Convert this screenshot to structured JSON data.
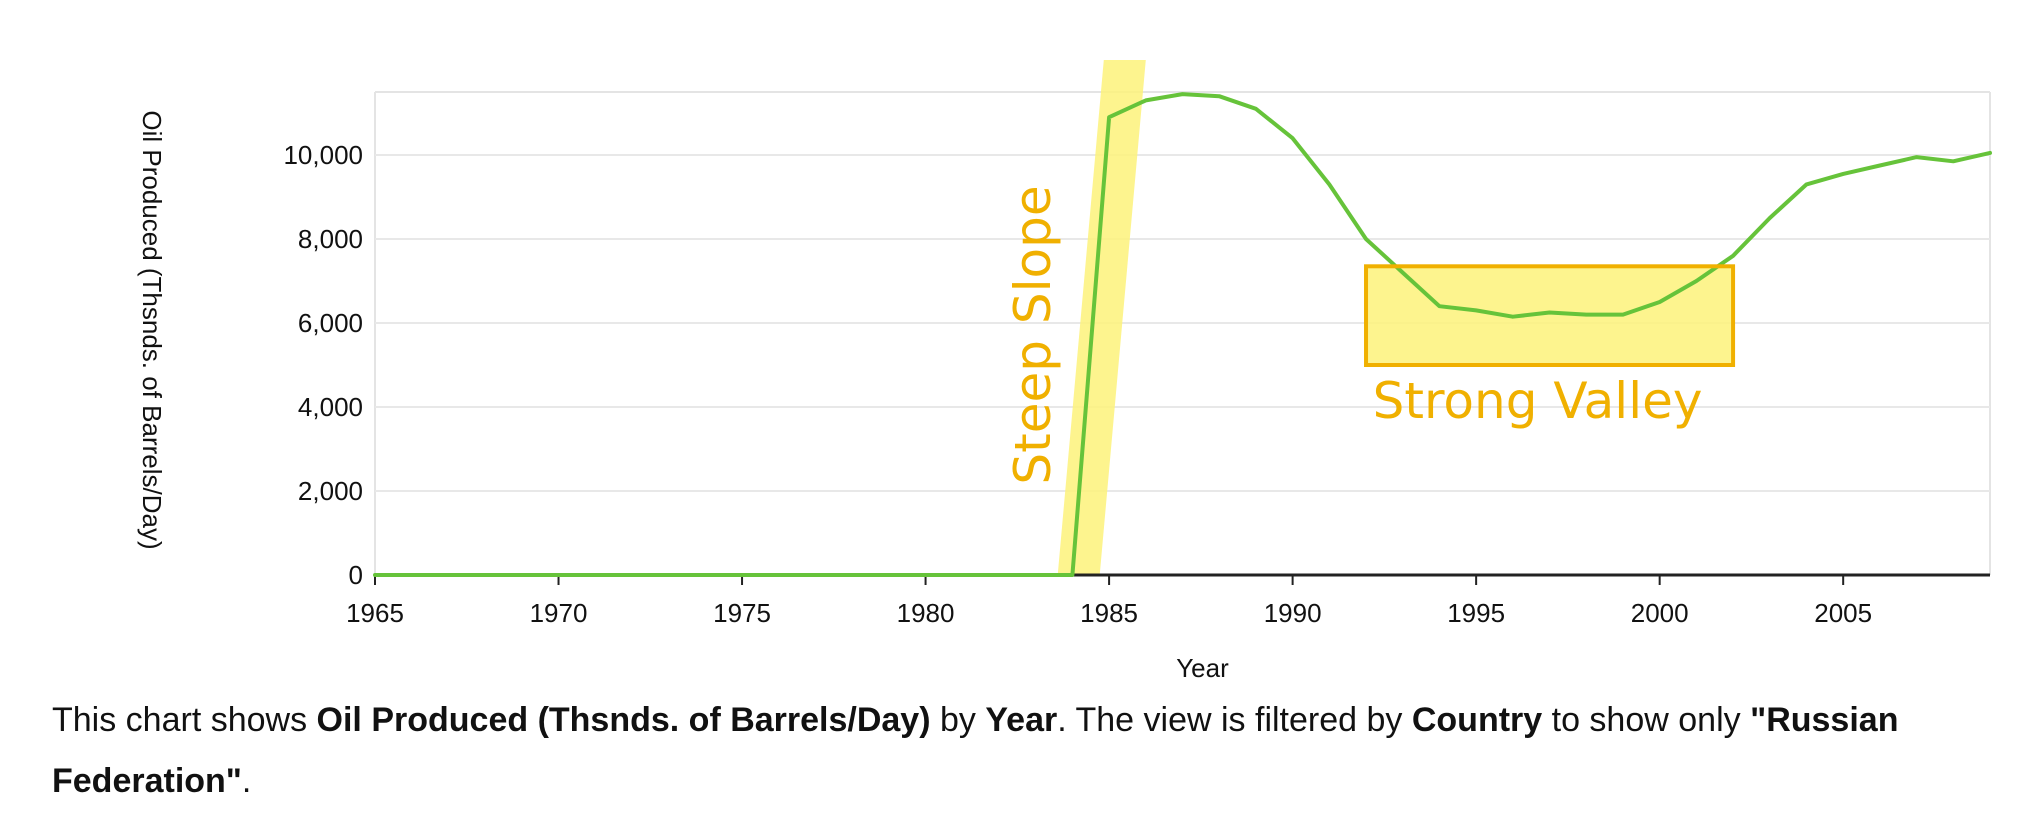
{
  "chart_data": {
    "type": "line",
    "xlabel": "Year",
    "ylabel": "Oil Produced (Thsnds. of Barrels/Day)",
    "xlim": [
      1965,
      2009
    ],
    "ylim": [
      0,
      11500
    ],
    "xticks": [
      1965,
      1970,
      1975,
      1980,
      1985,
      1990,
      1995,
      2000,
      2005
    ],
    "xtick_labels": [
      "1965",
      "1970",
      "1975",
      "1980",
      "1985",
      "1990",
      "1995",
      "2000",
      "2005"
    ],
    "yticks": [
      0,
      2000,
      4000,
      6000,
      8000,
      10000
    ],
    "ytick_labels": [
      "0",
      "2,000",
      "4,000",
      "6,000",
      "8,000",
      "10,000"
    ],
    "grid": true,
    "line_color": "#66c33a",
    "series": [
      {
        "x": [
          1965,
          1966,
          1967,
          1968,
          1969,
          1970,
          1971,
          1972,
          1973,
          1974,
          1975,
          1976,
          1977,
          1978,
          1979,
          1980,
          1981,
          1982,
          1983,
          1984,
          1985,
          1986,
          1987,
          1988,
          1989,
          1990,
          1991,
          1992,
          1993,
          1994,
          1995,
          1996,
          1997,
          1998,
          1999,
          2000,
          2001,
          2002,
          2003,
          2004,
          2005,
          2006,
          2007,
          2008,
          2009
        ],
        "y": [
          0,
          0,
          0,
          0,
          0,
          0,
          0,
          0,
          0,
          0,
          0,
          0,
          0,
          0,
          0,
          0,
          0,
          0,
          0,
          0,
          10900,
          11300,
          11450,
          11400,
          11100,
          10400,
          9300,
          8000,
          7200,
          6400,
          6300,
          6150,
          6250,
          6200,
          6200,
          6500,
          7000,
          7600,
          8500,
          9300,
          9550,
          9750,
          9950,
          9850,
          10050
        ]
      }
    ],
    "annotations": [
      {
        "label": "Steep Slope",
        "x_range": [
          1983.6,
          1986
        ],
        "color": "#f0b000",
        "fill": "#fdf27a"
      },
      {
        "label": "Strong Valley",
        "x_range": [
          1992,
          2002
        ],
        "y_range": [
          5000,
          7350
        ],
        "color": "#f0b000",
        "fill": "#fdf27a"
      }
    ]
  },
  "caption": {
    "t1": "This chart shows ",
    "b1": "Oil Produced (Thsnds. of Barrels/Day)",
    "t2": " by ",
    "b2": "Year",
    "t3": ". The view is filtered by ",
    "b3": "Country",
    "t4": " to show only ",
    "b4": "\"Russian Federation\"",
    "t5": "."
  }
}
